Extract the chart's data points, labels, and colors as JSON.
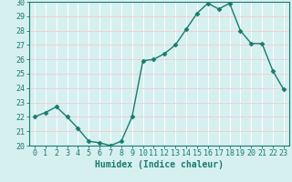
{
  "x": [
    0,
    1,
    2,
    3,
    4,
    5,
    6,
    7,
    8,
    9,
    10,
    11,
    12,
    13,
    14,
    15,
    16,
    17,
    18,
    19,
    20,
    21,
    22,
    23
  ],
  "y": [
    22.0,
    22.3,
    22.7,
    22.0,
    21.2,
    20.3,
    20.2,
    20.0,
    20.3,
    22.0,
    25.9,
    26.0,
    26.4,
    27.0,
    28.1,
    29.2,
    29.9,
    29.5,
    29.9,
    28.0,
    27.1,
    27.1,
    25.2,
    23.9
  ],
  "line_color": "#1a7a6e",
  "marker": "D",
  "markersize": 2.5,
  "linewidth": 1.0,
  "xlabel": "Humidex (Indice chaleur)",
  "xlim": [
    -0.5,
    23.5
  ],
  "ylim": [
    20,
    30
  ],
  "yticks": [
    20,
    21,
    22,
    23,
    24,
    25,
    26,
    27,
    28,
    29,
    30
  ],
  "xticks": [
    0,
    1,
    2,
    3,
    4,
    5,
    6,
    7,
    8,
    9,
    10,
    11,
    12,
    13,
    14,
    15,
    16,
    17,
    18,
    19,
    20,
    21,
    22,
    23
  ],
  "bg_color": "#d6f0f0",
  "grid_color": "#ffffff",
  "grid_rcolor": "#f0d0d0",
  "axes_color": "#1a7a6e",
  "tick_color": "#1a7a6e",
  "label_color": "#1a7a6e",
  "label_fontsize": 7,
  "tick_fontsize": 6
}
